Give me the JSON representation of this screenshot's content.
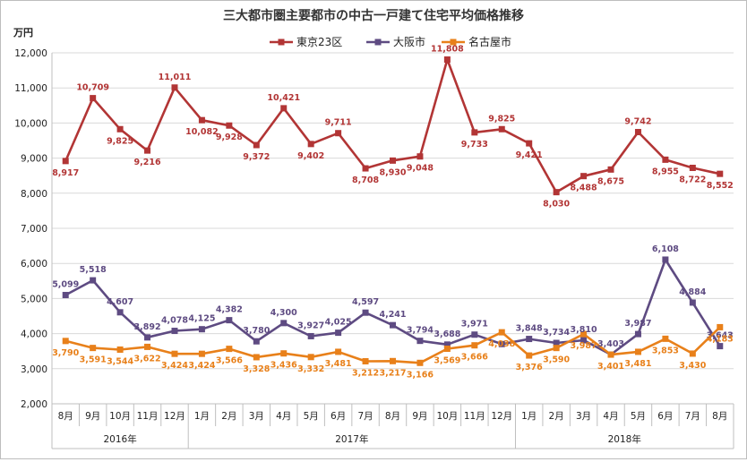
{
  "chart_data": {
    "type": "line",
    "title": "三大都市圏主要都市の中古一戸建て住宅平均価格推移",
    "ylabel": "万円",
    "ylim": [
      2000,
      12000
    ],
    "yticks": [
      "2,000",
      "3,000",
      "4,000",
      "5,000",
      "6,000",
      "7,000",
      "8,000",
      "9,000",
      "10,000",
      "11,000",
      "12,000"
    ],
    "grid": true,
    "legend_position": "top",
    "categories": [
      "8月",
      "9月",
      "10月",
      "11月",
      "12月",
      "1月",
      "2月",
      "3月",
      "4月",
      "5月",
      "6月",
      "7月",
      "8月",
      "9月",
      "10月",
      "11月",
      "12月",
      "1月",
      "2月",
      "3月",
      "4月",
      "5月",
      "6月",
      "7月",
      "8月"
    ],
    "year_groups": [
      {
        "label": "2016年",
        "start": 0,
        "end": 4
      },
      {
        "label": "2017年",
        "start": 5,
        "end": 16
      },
      {
        "label": "2018年",
        "start": 17,
        "end": 24
      }
    ],
    "series": [
      {
        "name": "東京23区",
        "color": "#b23535",
        "marker": "square",
        "values": [
          8917,
          10709,
          9825,
          9216,
          11011,
          10082,
          9928,
          9372,
          10421,
          9402,
          9711,
          8708,
          8930,
          9048,
          11808,
          9733,
          9825,
          9421,
          8030,
          8488,
          8675,
          9742,
          8955,
          8722,
          8552
        ],
        "labels": [
          "8,917",
          "10,709",
          "9,825",
          "9,216",
          "11,011",
          "10,082",
          "9,928",
          "9,372",
          "10,421",
          "9,402",
          "9,711",
          "8,708",
          "8,930",
          "9,048",
          "11,808",
          "9,733",
          "9,825",
          "9,421",
          "8,030",
          "8,488",
          "8,675",
          "9,742",
          "8,955",
          "8,722",
          "8,552"
        ]
      },
      {
        "name": "大阪市",
        "color": "#5e4b82",
        "marker": "square",
        "values": [
          5099,
          5518,
          4607,
          3892,
          4078,
          4125,
          4382,
          3780,
          4300,
          3927,
          4025,
          4597,
          4241,
          3794,
          3688,
          3971,
          3702,
          3848,
          3734,
          3810,
          3403,
          3987,
          6108,
          4884,
          3643
        ],
        "labels": [
          "5,099",
          "5,518",
          "4,607",
          "3,892",
          "4,078",
          "4,125",
          "4,382",
          "3,780",
          "4,300",
          "3,927",
          "4,025",
          "4,597",
          "4,241",
          "3,794",
          "3,688",
          "3,971",
          "",
          "3,848",
          "3,734",
          "3,810",
          "3,403",
          "3,987",
          "6,108",
          "4,884",
          "3,643"
        ]
      },
      {
        "name": "名古屋市",
        "color": "#e8801a",
        "marker": "square",
        "values": [
          3790,
          3591,
          3544,
          3622,
          3424,
          3424,
          3566,
          3328,
          3436,
          3332,
          3481,
          3212,
          3217,
          3166,
          3569,
          3666,
          4038,
          3376,
          3590,
          3987,
          3401,
          3481,
          3853,
          3430,
          4183
        ],
        "labels": [
          "3,790",
          "3,591",
          "3,544",
          "3,622",
          "3,424",
          "3,424",
          "3,566",
          "3,328",
          "3,436",
          "3,332",
          "3,481",
          "3,212",
          "3,217",
          "3,166",
          "3,569",
          "3,666",
          "4,038",
          "3,376",
          "3,590",
          "3,987",
          "3,401",
          "3,481",
          "3,853",
          "3,430",
          "4,183"
        ]
      }
    ]
  }
}
